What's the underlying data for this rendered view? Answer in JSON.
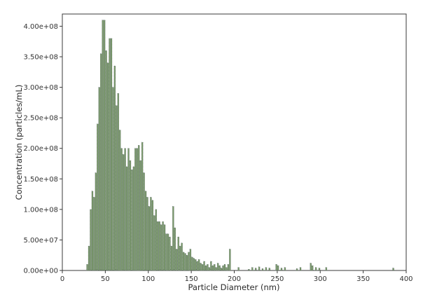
{
  "chart_data": {
    "type": "bar",
    "title": "",
    "xlabel": "Particle Diameter (nm)",
    "ylabel": "Concentration (particles/mL)",
    "xlim": [
      0,
      400
    ],
    "ylim": [
      0,
      420000000
    ],
    "grid": false,
    "legend": "none",
    "bar_color": "#7a9a68",
    "bar_edge_color": "#44505a",
    "x_ticks": [
      {
        "value": 0,
        "label": "0"
      },
      {
        "value": 50,
        "label": "50"
      },
      {
        "value": 100,
        "label": "100"
      },
      {
        "value": 150,
        "label": "150"
      },
      {
        "value": 200,
        "label": "200"
      },
      {
        "value": 250,
        "label": "250"
      },
      {
        "value": 300,
        "label": "300"
      },
      {
        "value": 350,
        "label": "350"
      },
      {
        "value": 400,
        "label": "400"
      }
    ],
    "y_ticks": [
      {
        "value": 0,
        "label": "0.00e+00"
      },
      {
        "value": 50000000,
        "label": "5.00e+07"
      },
      {
        "value": 100000000,
        "label": "1.00e+08"
      },
      {
        "value": 150000000,
        "label": "1.50e+08"
      },
      {
        "value": 200000000,
        "label": "2.00e+08"
      },
      {
        "value": 250000000,
        "label": "2.50e+08"
      },
      {
        "value": 300000000,
        "label": "3.00e+08"
      },
      {
        "value": 350000000,
        "label": "3.50e+08"
      },
      {
        "value": 400000000,
        "label": "4.00e+08"
      }
    ],
    "x": [
      29,
      31,
      33,
      35,
      37,
      39,
      41,
      43,
      45,
      47,
      49,
      51,
      53,
      55,
      57,
      59,
      61,
      63,
      65,
      67,
      69,
      71,
      73,
      75,
      77,
      79,
      81,
      83,
      85,
      87,
      89,
      91,
      93,
      95,
      97,
      99,
      101,
      103,
      105,
      107,
      109,
      111,
      113,
      115,
      117,
      119,
      121,
      123,
      125,
      127,
      129,
      131,
      133,
      135,
      137,
      139,
      141,
      143,
      145,
      147,
      149,
      151,
      153,
      155,
      157,
      159,
      161,
      163,
      165,
      167,
      169,
      171,
      173,
      175,
      177,
      179,
      181,
      183,
      185,
      187,
      189,
      191,
      193,
      195,
      205,
      217,
      221,
      225,
      229,
      233,
      237,
      241,
      249,
      251,
      255,
      259,
      273,
      277,
      289,
      291,
      295,
      299,
      307,
      385
    ],
    "values": [
      10000000,
      40000000,
      100000000,
      130000000,
      120000000,
      160000000,
      240000000,
      300000000,
      355000000,
      410000000,
      410000000,
      360000000,
      340000000,
      380000000,
      380000000,
      300000000,
      335000000,
      270000000,
      290000000,
      230000000,
      200000000,
      190000000,
      200000000,
      170000000,
      200000000,
      180000000,
      165000000,
      170000000,
      200000000,
      200000000,
      205000000,
      180000000,
      210000000,
      160000000,
      130000000,
      120000000,
      105000000,
      120000000,
      115000000,
      90000000,
      100000000,
      80000000,
      80000000,
      75000000,
      80000000,
      75000000,
      60000000,
      60000000,
      55000000,
      40000000,
      105000000,
      70000000,
      35000000,
      55000000,
      40000000,
      45000000,
      30000000,
      28000000,
      25000000,
      30000000,
      35000000,
      22000000,
      20000000,
      18000000,
      15000000,
      18000000,
      12000000,
      10000000,
      15000000,
      8000000,
      10000000,
      5000000,
      15000000,
      8000000,
      10000000,
      5000000,
      12000000,
      8000000,
      4000000,
      8000000,
      10000000,
      5000000,
      10000000,
      35000000,
      5000000,
      2000000,
      5000000,
      4000000,
      6000000,
      3000000,
      5000000,
      4000000,
      10000000,
      8000000,
      4000000,
      5000000,
      3000000,
      5000000,
      12000000,
      8000000,
      5000000,
      4000000,
      5000000,
      4000000
    ]
  }
}
